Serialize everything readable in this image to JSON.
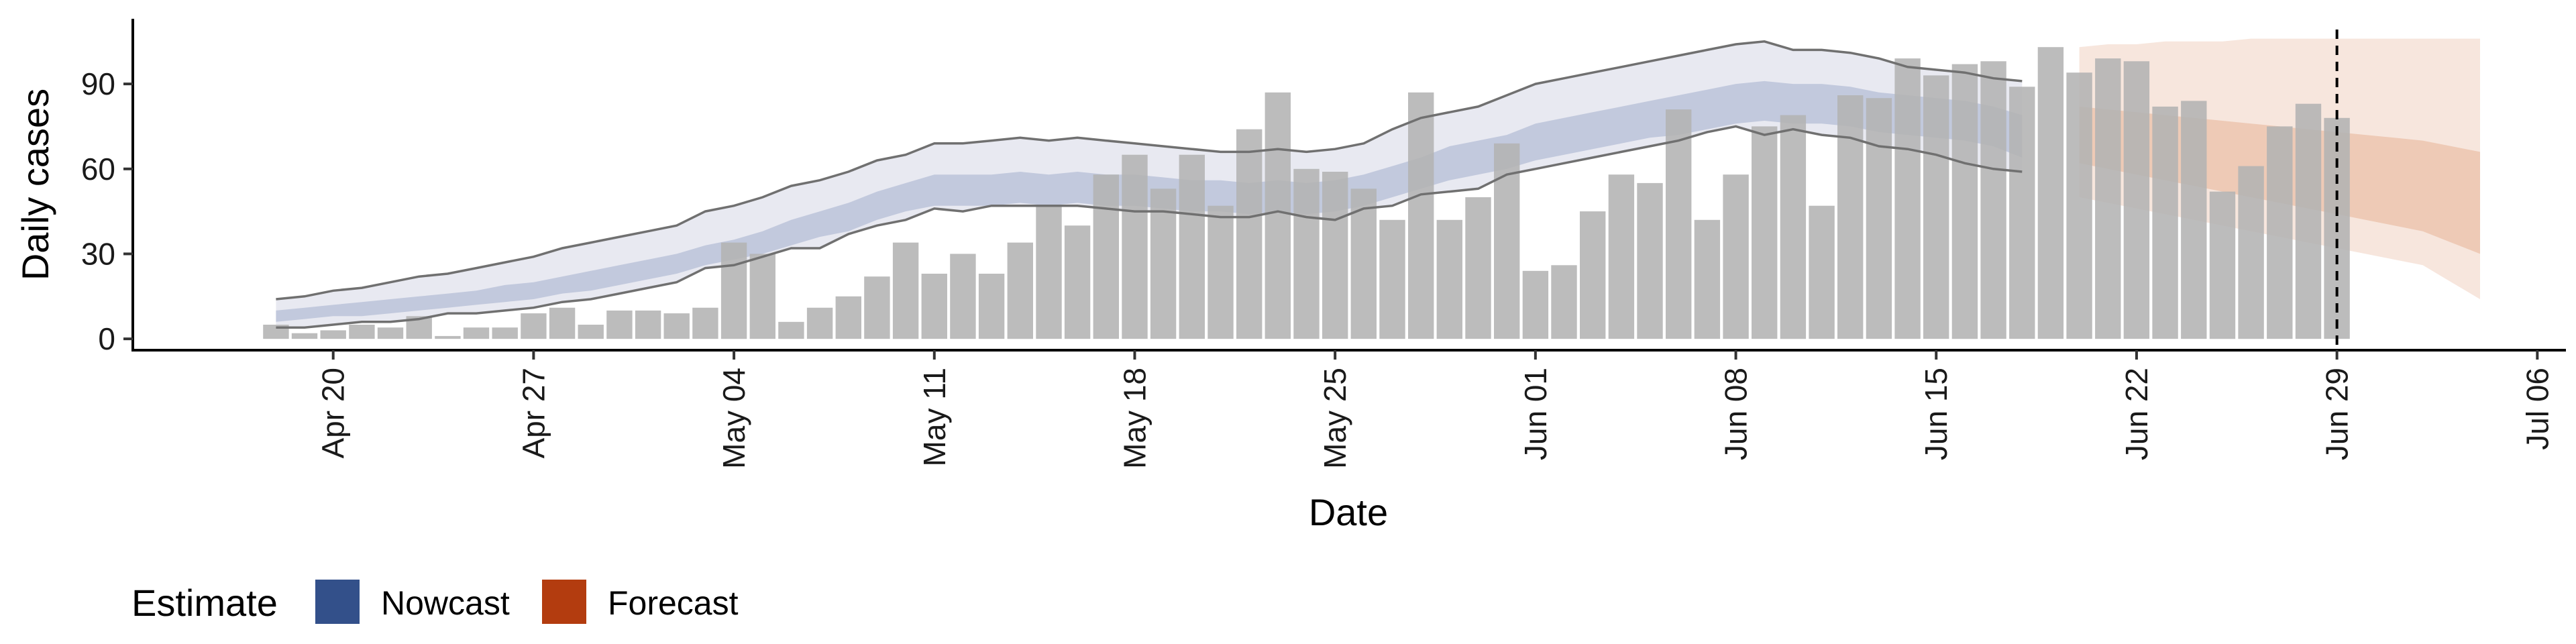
{
  "chart_data": {
    "type": "bar",
    "xlabel": "Date",
    "ylabel": "Daily cases",
    "x_range": [
      "2020-04-13",
      "2020-07-07"
    ],
    "ylim": [
      -4,
      113
    ],
    "y_ticks": [
      0,
      30,
      60,
      90
    ],
    "x_ticks": [
      {
        "date": "2020-04-20",
        "label": "Apr 20"
      },
      {
        "date": "2020-04-27",
        "label": "Apr 27"
      },
      {
        "date": "2020-05-04",
        "label": "May 04"
      },
      {
        "date": "2020-05-11",
        "label": "May 11"
      },
      {
        "date": "2020-05-18",
        "label": "May 18"
      },
      {
        "date": "2020-05-25",
        "label": "May 25"
      },
      {
        "date": "2020-06-01",
        "label": "Jun 01"
      },
      {
        "date": "2020-06-08",
        "label": "Jun 08"
      },
      {
        "date": "2020-06-15",
        "label": "Jun 15"
      },
      {
        "date": "2020-06-22",
        "label": "Jun 22"
      },
      {
        "date": "2020-06-29",
        "label": "Jun 29"
      },
      {
        "date": "2020-07-06",
        "label": "Jul 06"
      }
    ],
    "grid": false,
    "vline_date": "2020-06-29",
    "bars": {
      "start_date": "2020-04-18",
      "values": [
        5,
        2,
        3,
        5,
        4,
        8,
        1,
        4,
        4,
        9,
        11,
        5,
        10,
        10,
        9,
        11,
        34,
        30,
        6,
        11,
        15,
        22,
        34,
        23,
        30,
        23,
        34,
        47,
        40,
        58,
        65,
        53,
        65,
        47,
        74,
        87,
        60,
        59,
        53,
        42,
        87,
        42,
        50,
        69,
        24,
        26,
        45,
        58,
        55,
        81,
        42,
        58,
        75,
        79,
        47,
        86,
        85,
        99,
        93,
        97,
        98,
        89,
        103,
        94,
        99,
        98,
        82,
        84,
        52,
        61,
        75,
        83,
        78
      ],
      "color": "#b3b3b3"
    },
    "series": [
      {
        "name": "Nowcast",
        "start_date": "2020-04-18",
        "upper90": [
          14,
          15,
          17,
          18,
          20,
          22,
          23,
          25,
          27,
          29,
          32,
          34,
          36,
          38,
          40,
          45,
          47,
          50,
          54,
          56,
          59,
          63,
          65,
          69,
          69,
          70,
          71,
          70,
          71,
          70,
          69,
          68,
          67,
          66,
          66,
          67,
          66,
          67,
          69,
          74,
          78,
          80,
          82,
          86,
          90,
          92,
          94,
          96,
          98,
          100,
          102,
          104,
          105,
          102,
          102,
          101,
          99,
          96,
          95,
          94,
          92,
          91
        ],
        "upper50": [
          10,
          11,
          12,
          13,
          14,
          15,
          16,
          17,
          19,
          20,
          22,
          24,
          26,
          28,
          30,
          33,
          35,
          38,
          42,
          45,
          48,
          52,
          55,
          58,
          58,
          58,
          59,
          58,
          59,
          58,
          58,
          57,
          56,
          56,
          55,
          56,
          55,
          56,
          58,
          61,
          64,
          68,
          70,
          72,
          76,
          78,
          80,
          82,
          84,
          86,
          88,
          90,
          91,
          90,
          90,
          89,
          87,
          86,
          85,
          84,
          82,
          79
        ],
        "lower50": [
          6,
          7,
          8,
          8,
          9,
          10,
          11,
          12,
          13,
          14,
          16,
          17,
          19,
          21,
          23,
          26,
          28,
          30,
          33,
          36,
          38,
          42,
          45,
          47,
          47,
          47,
          48,
          47,
          48,
          47,
          47,
          46,
          45,
          45,
          44,
          45,
          44,
          45,
          47,
          50,
          53,
          56,
          58,
          60,
          63,
          65,
          67,
          69,
          71,
          72,
          74,
          76,
          77,
          76,
          76,
          75,
          73,
          72,
          71,
          70,
          68,
          64
        ],
        "lower90": [
          4,
          4,
          5,
          6,
          6,
          7,
          9,
          9,
          10,
          11,
          13,
          14,
          16,
          18,
          20,
          25,
          26,
          29,
          32,
          32,
          37,
          40,
          42,
          46,
          45,
          47,
          47,
          47,
          47,
          46,
          45,
          45,
          44,
          43,
          43,
          45,
          43,
          42,
          46,
          47,
          51,
          52,
          53,
          58,
          60,
          62,
          64,
          66,
          68,
          70,
          73,
          75,
          72,
          74,
          72,
          71,
          68,
          67,
          65,
          62,
          60,
          59
        ],
        "color": "#33508a"
      },
      {
        "name": "Forecast",
        "start_date": "2020-06-20",
        "upper90": [
          103,
          104,
          104,
          105,
          105,
          105,
          106,
          106,
          106,
          106,
          106,
          106,
          106,
          106,
          106
        ],
        "upper50": [
          82,
          81,
          80,
          79,
          78,
          77,
          76,
          75,
          74,
          73,
          72,
          71,
          70,
          68,
          66
        ],
        "lower50": [
          62,
          60,
          58,
          56,
          54,
          52,
          50,
          48,
          46,
          44,
          42,
          40,
          38,
          34,
          30
        ],
        "lower90": [
          50,
          48,
          46,
          44,
          42,
          40,
          38,
          36,
          34,
          32,
          30,
          28,
          26,
          20,
          14
        ],
        "color": "#b33c0f"
      }
    ],
    "legend": {
      "title": "Estimate",
      "placement": "bottom-left",
      "items": [
        {
          "label": "Nowcast",
          "color": "#33508a"
        },
        {
          "label": "Forecast",
          "color": "#b33c0f"
        }
      ]
    }
  }
}
